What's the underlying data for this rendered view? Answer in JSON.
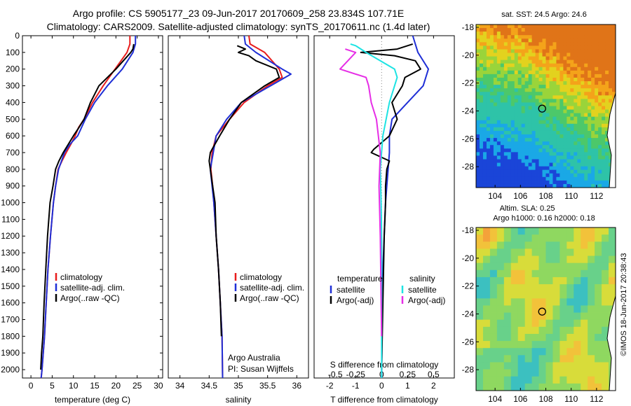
{
  "header": {
    "line1": "Argo profile: CS 5905177_23 09-Jun-2017 20170609_258 23.834S 107.71E",
    "line2": "Climatology: CARS2009. Satellite-adjusted climatology: synTS_20170611.nc (1.4d later)"
  },
  "colors": {
    "clim": "#e81c1c",
    "sat": "#1f2fd6",
    "argo": "#000000",
    "sal_sat": "#1ee3e3",
    "sal_argo": "#e62ee6"
  },
  "chart_data": [
    {
      "type": "line",
      "name": "temperature-profile",
      "xlabel": "temperature (deg C)",
      "ylabel": "",
      "xlim": [
        -2,
        31
      ],
      "ylim": [
        0,
        2050
      ],
      "y_inverted": true,
      "xticks": [
        0,
        5,
        10,
        15,
        20,
        25,
        30
      ],
      "yticks": [
        0,
        100,
        200,
        300,
        400,
        500,
        600,
        700,
        800,
        900,
        1000,
        1100,
        1200,
        1300,
        1400,
        1500,
        1600,
        1700,
        1800,
        1900,
        2000
      ],
      "legend": [
        "climatology",
        "satellite-adj. clim.",
        "Argo(..raw -QC)"
      ],
      "series": [
        {
          "name": "climatology",
          "x": [
            23.3,
            23.3,
            22.6,
            19.8,
            17.0,
            14.5,
            12.5,
            11.2,
            10.4,
            9.4,
            8.3,
            7.3,
            6.4,
            5.8,
            5.3,
            4.6,
            4.0,
            3.6,
            3.2,
            2.9,
            2.6,
            2.4
          ],
          "y": [
            0,
            50,
            100,
            200,
            300,
            400,
            500,
            550,
            600,
            650,
            700,
            750,
            800,
            900,
            1000,
            1200,
            1400,
            1600,
            1800,
            1900,
            2000,
            2050
          ]
        },
        {
          "name": "satellite-adj. clim.",
          "x": [
            24.6,
            24.6,
            24.0,
            21.5,
            18.0,
            15.0,
            12.8,
            11.0,
            9.2,
            7.9,
            6.5,
            5.8,
            5.3,
            4.6,
            4.0,
            3.6,
            3.2,
            2.9,
            2.6,
            2.4
          ],
          "y": [
            0,
            50,
            100,
            200,
            300,
            400,
            500,
            600,
            650,
            700,
            800,
            900,
            1000,
            1200,
            1400,
            1600,
            1800,
            1900,
            2000,
            2050
          ]
        },
        {
          "name": "Argo(..raw -QC)",
          "x": [
            24.2,
            24.0,
            23.5,
            20.0,
            16.0,
            14.0,
            12.5,
            11.3,
            10.0,
            8.8,
            7.6,
            6.6,
            5.8,
            5.2,
            4.5,
            3.9,
            3.5,
            3.1,
            2.8,
            2.5,
            2.3
          ],
          "y": [
            50,
            80,
            100,
            200,
            300,
            400,
            500,
            550,
            600,
            650,
            700,
            750,
            800,
            900,
            1000,
            1200,
            1400,
            1600,
            1800,
            1900,
            2000
          ]
        }
      ]
    },
    {
      "type": "line",
      "name": "salinity-profile",
      "xlabel": "salinity",
      "xlim": [
        33.8,
        36.2
      ],
      "ylim": [
        0,
        2050
      ],
      "y_inverted": true,
      "xticks": [
        34,
        34.5,
        35,
        35.5,
        36
      ],
      "xtick_labels": [
        "34",
        "34.5",
        "35",
        "35.5",
        "36"
      ],
      "legend": [
        "climatology",
        "satellite-adj. clim.",
        "Argo(..raw -QC)"
      ],
      "annotations": [
        "Argo Australia",
        "PI: Susan Wijffels"
      ],
      "series": [
        {
          "name": "climatology",
          "x": [
            35.18,
            35.2,
            35.45,
            35.7,
            35.75,
            35.5,
            35.1,
            34.85,
            34.62,
            34.55,
            34.53,
            34.56,
            34.58,
            34.62,
            34.66,
            34.69,
            34.72,
            34.73
          ],
          "y": [
            0,
            50,
            100,
            200,
            250,
            300,
            400,
            500,
            600,
            700,
            800,
            900,
            1000,
            1200,
            1400,
            1600,
            1800,
            2050
          ]
        },
        {
          "name": "satellite-adj. clim.",
          "x": [
            35.1,
            35.12,
            35.3,
            35.75,
            35.9,
            35.55,
            35.05,
            34.8,
            34.62,
            34.57,
            34.52,
            34.55,
            34.58,
            34.62,
            34.66,
            34.69,
            34.72,
            34.73
          ],
          "y": [
            0,
            50,
            100,
            200,
            230,
            300,
            400,
            500,
            600,
            700,
            800,
            900,
            1000,
            1200,
            1400,
            1600,
            1800,
            2050
          ]
        },
        {
          "name": "Argo(..raw -QC)",
          "x": [
            34.98,
            35.12,
            35.0,
            35.18,
            35.3,
            35.65,
            35.7,
            35.45,
            35.05,
            34.85,
            34.68,
            34.55,
            34.52,
            34.5,
            34.56,
            34.6,
            34.62,
            34.66,
            34.69,
            34.71
          ],
          "y": [
            60,
            80,
            100,
            120,
            150,
            200,
            250,
            300,
            400,
            500,
            600,
            680,
            700,
            750,
            900,
            1000,
            1200,
            1400,
            1600,
            1800
          ]
        }
      ]
    },
    {
      "type": "line",
      "name": "difference-profile",
      "xlabel": "T difference from climatology",
      "top_xlabel": "S difference from climatology",
      "xlim": [
        -2.6,
        2.8
      ],
      "ylim": [
        0,
        2050
      ],
      "y_inverted": true,
      "xticks": [
        -2,
        -1,
        0,
        1,
        2
      ],
      "top_xtick_labels": [
        "-0.5",
        "-0.25",
        "0",
        "0.25",
        "0.5"
      ],
      "legend_headers": [
        "temperature",
        "salinity"
      ],
      "legend": [
        "satellite",
        "Argo(-adj)",
        "satellite",
        "Argo(-adj)"
      ],
      "series": [
        {
          "name": "temperature satellite",
          "x": [
            1.2,
            1.3,
            1.4,
            1.8,
            1.6,
            1.0,
            0.4,
            0.3,
            0.3,
            0.25,
            0.2,
            0.15,
            0.1,
            0.05,
            0.03,
            0.0
          ],
          "y": [
            0,
            50,
            100,
            200,
            300,
            400,
            500,
            600,
            700,
            800,
            900,
            1000,
            1200,
            1400,
            1600,
            2050
          ]
        },
        {
          "name": "temperature Argo(-adj)",
          "x": [
            1.2,
            0.6,
            -0.8,
            0.5,
            1.3,
            1.5,
            0.9,
            0.8,
            0.4,
            0.6,
            0.3,
            -0.3,
            -0.4,
            0.3,
            0.2,
            0.15,
            0.15,
            0.1,
            0.05,
            0.0
          ],
          "y": [
            50,
            80,
            100,
            120,
            150,
            200,
            250,
            300,
            400,
            500,
            600,
            680,
            700,
            750,
            800,
            900,
            1000,
            1200,
            1600,
            2000
          ]
        },
        {
          "name": "salinity satellite",
          "x": [
            -1.2,
            -1.0,
            -0.6,
            0.5,
            0.6,
            0.3,
            0.05,
            -0.05,
            -0.02,
            0.0,
            0.0,
            0.0
          ],
          "y": [
            50,
            60,
            100,
            200,
            250,
            400,
            600,
            800,
            1000,
            1200,
            1600,
            2050
          ]
        },
        {
          "name": "salinity Argo(-adj)",
          "x": [
            -1.4,
            -1.0,
            -1.6,
            -0.6,
            -0.5,
            -0.4,
            -0.2,
            -0.05,
            -0.1,
            -0.05,
            0.0
          ],
          "y": [
            80,
            100,
            200,
            250,
            300,
            400,
            500,
            700,
            900,
            1200,
            1800
          ]
        }
      ]
    },
    {
      "type": "heatmap",
      "name": "sst-map",
      "title": "sat. SST: 24.5 Argo: 24.6",
      "xlim": [
        102.5,
        113.5
      ],
      "ylim": [
        -29.5,
        -17.8
      ],
      "xticks": [
        104,
        106,
        108,
        110,
        112
      ],
      "yticks": [
        -28,
        -26,
        -24,
        -22,
        -20,
        -18
      ],
      "marker": {
        "lon": 107.71,
        "lat": -23.834
      },
      "seed": 11,
      "palette": "sst"
    },
    {
      "type": "heatmap",
      "name": "sla-map",
      "title": "Altim. SLA: 0.25",
      "subtitle": "Argo h1000: 0.16 h2000: 0.18",
      "xlim": [
        102.5,
        113.5
      ],
      "ylim": [
        -29.5,
        -17.8
      ],
      "xticks": [
        104,
        106,
        108,
        110,
        112
      ],
      "yticks": [
        -28,
        -26,
        -24,
        -22,
        -20,
        -18
      ],
      "marker": {
        "lon": 107.71,
        "lat": -23.834
      },
      "seed": 7,
      "palette": "sla"
    }
  ],
  "credit": "©IMOS 18-Jun-2017 20:38:43"
}
